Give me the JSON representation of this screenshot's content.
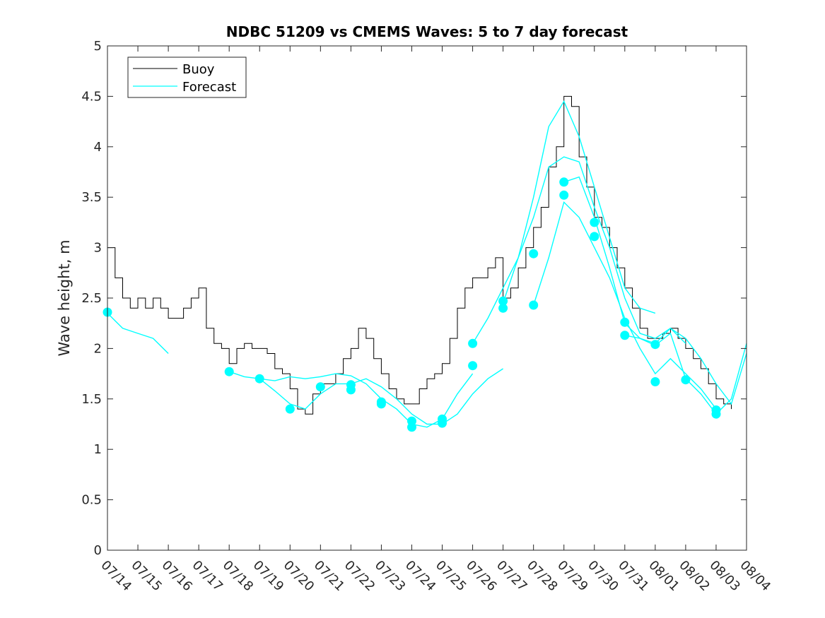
{
  "chart_data": {
    "type": "line",
    "title": "NDBC 51209 vs CMEMS Waves: 5 to 7 day forecast",
    "xlabel": "",
    "ylabel": "Wave height, m",
    "ylim": [
      0,
      5
    ],
    "yticks": [
      0,
      0.5,
      1,
      1.5,
      2,
      2.5,
      3,
      3.5,
      4,
      4.5,
      5
    ],
    "xlim": [
      "2024-07-14",
      "2024-08-04"
    ],
    "xtick_labels": [
      "07/14",
      "07/15",
      "07/16",
      "07/17",
      "07/18",
      "07/19",
      "07/20",
      "07/21",
      "07/22",
      "07/23",
      "07/24",
      "07/25",
      "07/26",
      "07/27",
      "07/28",
      "07/29",
      "07/30",
      "07/31",
      "08/01",
      "08/02",
      "08/03",
      "08/04"
    ],
    "grid": false,
    "legend": {
      "placement": "top-left",
      "entries": [
        "Buoy",
        "Forecast"
      ]
    },
    "colors": {
      "buoy": "#000000",
      "forecast": "#00ffff",
      "axis": "#262626"
    },
    "series": [
      {
        "name": "Buoy",
        "color": "#000000",
        "x": [
          "2024-07-14 00:00",
          "2024-07-14 06:00",
          "2024-07-14 12:00",
          "2024-07-14 18:00",
          "2024-07-15 00:00",
          "2024-07-15 06:00",
          "2024-07-15 12:00",
          "2024-07-15 18:00",
          "2024-07-16 00:00",
          "2024-07-16 06:00",
          "2024-07-16 12:00",
          "2024-07-16 18:00",
          "2024-07-17 00:00",
          "2024-07-17 06:00",
          "2024-07-17 12:00",
          "2024-07-17 18:00",
          "2024-07-18 00:00",
          "2024-07-18 06:00",
          "2024-07-18 12:00",
          "2024-07-18 18:00",
          "2024-07-19 00:00",
          "2024-07-19 06:00",
          "2024-07-19 12:00",
          "2024-07-19 18:00",
          "2024-07-20 00:00",
          "2024-07-20 06:00",
          "2024-07-20 12:00",
          "2024-07-20 18:00",
          "2024-07-21 00:00",
          "2024-07-21 06:00",
          "2024-07-21 12:00",
          "2024-07-21 18:00",
          "2024-07-22 00:00",
          "2024-07-22 06:00",
          "2024-07-22 12:00",
          "2024-07-22 18:00",
          "2024-07-23 00:00",
          "2024-07-23 06:00",
          "2024-07-23 12:00",
          "2024-07-23 18:00",
          "2024-07-24 00:00",
          "2024-07-24 06:00",
          "2024-07-24 12:00",
          "2024-07-24 18:00",
          "2024-07-25 00:00",
          "2024-07-25 06:00",
          "2024-07-25 12:00",
          "2024-07-25 18:00",
          "2024-07-26 00:00",
          "2024-07-26 06:00",
          "2024-07-26 12:00",
          "2024-07-26 18:00",
          "2024-07-27 00:00",
          "2024-07-27 06:00",
          "2024-07-27 12:00",
          "2024-07-27 18:00",
          "2024-07-28 00:00",
          "2024-07-28 06:00",
          "2024-07-28 12:00",
          "2024-07-28 18:00",
          "2024-07-29 00:00",
          "2024-07-29 06:00",
          "2024-07-29 12:00",
          "2024-07-29 18:00",
          "2024-07-30 00:00",
          "2024-07-30 06:00",
          "2024-07-30 12:00",
          "2024-07-30 18:00",
          "2024-07-31 00:00",
          "2024-07-31 06:00",
          "2024-07-31 12:00",
          "2024-07-31 18:00",
          "2024-08-01 00:00",
          "2024-08-01 06:00",
          "2024-08-01 12:00",
          "2024-08-01 18:00",
          "2024-08-02 00:00",
          "2024-08-02 06:00",
          "2024-08-02 12:00",
          "2024-08-02 18:00",
          "2024-08-03 00:00",
          "2024-08-03 06:00",
          "2024-08-03 12:00"
        ],
        "y": [
          3.0,
          2.7,
          2.5,
          2.4,
          2.5,
          2.4,
          2.5,
          2.4,
          2.3,
          2.3,
          2.4,
          2.5,
          2.6,
          2.2,
          2.05,
          2.0,
          1.85,
          2.0,
          2.05,
          2.0,
          2.0,
          1.95,
          1.8,
          1.75,
          1.6,
          1.4,
          1.35,
          1.55,
          1.65,
          1.65,
          1.75,
          1.9,
          2.0,
          2.2,
          2.1,
          1.9,
          1.75,
          1.6,
          1.5,
          1.45,
          1.45,
          1.6,
          1.7,
          1.75,
          1.85,
          2.1,
          2.4,
          2.6,
          2.7,
          2.7,
          2.8,
          2.9,
          2.5,
          2.6,
          2.8,
          3.0,
          3.2,
          3.4,
          3.8,
          4.0,
          4.5,
          4.4,
          3.9,
          3.6,
          3.3,
          3.2,
          3.0,
          2.8,
          2.6,
          2.4,
          2.2,
          2.1,
          2.1,
          2.15,
          2.2,
          2.1,
          2.0,
          1.9,
          1.8,
          1.65,
          1.5,
          1.45,
          1.4
        ]
      },
      {
        "name": "Forecast",
        "color": "#00ffff",
        "segments": [
          {
            "x": [
              "2024-07-14 00:00",
              "2024-07-14 12:00",
              "2024-07-15 00:00",
              "2024-07-15 12:00",
              "2024-07-16 00:00"
            ],
            "y": [
              2.35,
              2.2,
              2.15,
              2.1,
              1.95
            ]
          },
          {
            "x": [
              "2024-07-18 00:00",
              "2024-07-18 12:00",
              "2024-07-19 00:00",
              "2024-07-19 12:00",
              "2024-07-20 00:00",
              "2024-07-20 12:00",
              "2024-07-21 00:00",
              "2024-07-21 12:00",
              "2024-07-22 00:00",
              "2024-07-22 12:00",
              "2024-07-23 00:00",
              "2024-07-23 12:00",
              "2024-07-24 00:00",
              "2024-07-24 12:00",
              "2024-07-25 00:00",
              "2024-07-25 12:00",
              "2024-07-26 00:00",
              "2024-07-26 12:00",
              "2024-07-27 00:00"
            ],
            "y": [
              1.77,
              1.72,
              1.7,
              1.58,
              1.45,
              1.4,
              1.55,
              1.65,
              1.65,
              1.7,
              1.62,
              1.5,
              1.35,
              1.25,
              1.25,
              1.35,
              1.55,
              1.7,
              1.8
            ]
          },
          {
            "x": [
              "2024-07-19 00:00",
              "2024-07-19 12:00",
              "2024-07-20 00:00",
              "2024-07-20 12:00",
              "2024-07-21 00:00",
              "2024-07-21 12:00",
              "2024-07-22 00:00",
              "2024-07-22 12:00",
              "2024-07-23 00:00",
              "2024-07-23 12:00",
              "2024-07-24 00:00",
              "2024-07-24 12:00",
              "2024-07-25 00:00",
              "2024-07-25 12:00",
              "2024-07-26 00:00"
            ],
            "y": [
              1.7,
              1.68,
              1.72,
              1.7,
              1.72,
              1.75,
              1.73,
              1.65,
              1.5,
              1.4,
              1.25,
              1.22,
              1.3,
              1.55,
              1.75
            ]
          },
          {
            "x": [
              "2024-07-26 00:00",
              "2024-07-26 12:00",
              "2024-07-27 00:00",
              "2024-07-27 12:00",
              "2024-07-28 00:00",
              "2024-07-28 12:00",
              "2024-07-29 00:00",
              "2024-07-29 12:00",
              "2024-07-30 00:00",
              "2024-07-30 12:00",
              "2024-07-31 00:00",
              "2024-07-31 12:00",
              "2024-08-01 00:00"
            ],
            "y": [
              2.05,
              2.3,
              2.6,
              2.9,
              3.5,
              4.2,
              4.45,
              4.1,
              3.6,
              3.1,
              2.6,
              2.4,
              2.35
            ]
          },
          {
            "x": [
              "2024-07-27 00:00",
              "2024-07-27 12:00",
              "2024-07-28 00:00",
              "2024-07-28 12:00",
              "2024-07-29 00:00",
              "2024-07-29 12:00",
              "2024-07-30 00:00",
              "2024-07-30 12:00",
              "2024-07-31 00:00",
              "2024-07-31 12:00",
              "2024-08-01 00:00",
              "2024-08-01 12:00",
              "2024-08-02 00:00"
            ],
            "y": [
              2.45,
              2.9,
              3.3,
              3.8,
              3.9,
              3.85,
              3.4,
              3.0,
              2.5,
              2.15,
              2.1,
              2.2,
              2.05
            ]
          },
          {
            "x": [
              "2024-07-28 00:00",
              "2024-07-28 12:00",
              "2024-07-29 00:00",
              "2024-07-29 12:00",
              "2024-07-30 00:00",
              "2024-07-30 12:00",
              "2024-07-31 00:00",
              "2024-07-31 12:00",
              "2024-08-01 00:00",
              "2024-08-01 12:00",
              "2024-08-02 00:00",
              "2024-08-02 12:00",
              "2024-08-03 00:00"
            ],
            "y": [
              2.43,
              2.9,
              3.45,
              3.3,
              3.0,
              2.7,
              2.3,
              2.0,
              1.75,
              1.9,
              1.75,
              1.6,
              1.4
            ]
          },
          {
            "x": [
              "2024-07-29 00:00",
              "2024-07-29 12:00",
              "2024-07-30 00:00",
              "2024-07-30 12:00",
              "2024-07-31 00:00",
              "2024-07-31 12:00",
              "2024-08-01 00:00",
              "2024-08-01 12:00",
              "2024-08-02 00:00",
              "2024-08-02 12:00",
              "2024-08-03 00:00",
              "2024-08-03 12:00",
              "2024-08-04 00:00"
            ],
            "y": [
              3.65,
              3.7,
              3.3,
              2.8,
              2.25,
              2.1,
              2.05,
              2.2,
              2.1,
              1.9,
              1.65,
              1.45,
              1.95
            ]
          },
          {
            "x": [
              "2024-07-31 00:00",
              "2024-07-31 12:00",
              "2024-08-01 00:00",
              "2024-08-01 12:00",
              "2024-08-02 00:00",
              "2024-08-02 12:00",
              "2024-08-03 00:00",
              "2024-08-03 12:00",
              "2024-08-04 00:00"
            ],
            "y": [
              2.13,
              2.1,
              2.03,
              2.15,
              1.7,
              1.55,
              1.35,
              1.5,
              2.05
            ]
          }
        ]
      }
    ],
    "markers": {
      "color": "#00ffff",
      "x": [
        "2024-07-14 00:00",
        "2024-07-18 00:00",
        "2024-07-19 00:00",
        "2024-07-20 00:00",
        "2024-07-21 00:00",
        "2024-07-22 00:00",
        "2024-07-22 00:00",
        "2024-07-23 00:00",
        "2024-07-23 00:00",
        "2024-07-24 00:00",
        "2024-07-24 00:00",
        "2024-07-25 00:00",
        "2024-07-25 00:00",
        "2024-07-26 00:00",
        "2024-07-26 00:00",
        "2024-07-27 00:00",
        "2024-07-27 00:00",
        "2024-07-28 00:00",
        "2024-07-28 00:00",
        "2024-07-29 00:00",
        "2024-07-29 00:00",
        "2024-07-30 00:00",
        "2024-07-30 00:00",
        "2024-07-31 00:00",
        "2024-07-31 00:00",
        "2024-08-01 00:00",
        "2024-08-01 00:00",
        "2024-08-02 00:00",
        "2024-08-03 00:00",
        "2024-08-03 00:00"
      ],
      "y": [
        2.36,
        1.77,
        1.7,
        1.4,
        1.62,
        1.64,
        1.59,
        1.47,
        1.45,
        1.28,
        1.22,
        1.3,
        1.26,
        2.05,
        1.83,
        2.47,
        2.4,
        2.94,
        2.43,
        3.65,
        3.52,
        3.25,
        3.11,
        2.26,
        2.13,
        2.04,
        1.67,
        1.69,
        1.39,
        1.35
      ]
    }
  }
}
